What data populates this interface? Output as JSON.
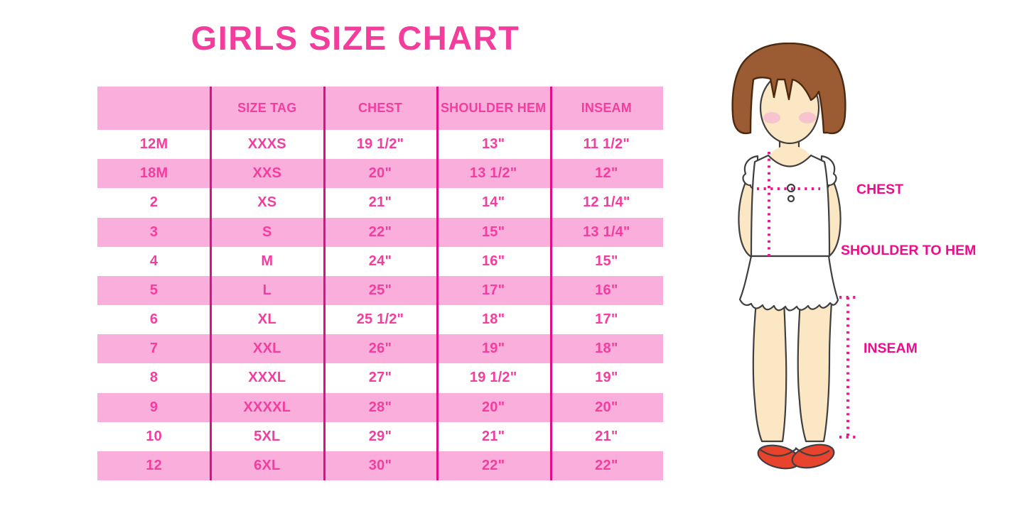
{
  "title": "GIRLS SIZE CHART",
  "chart_data": {
    "type": "table",
    "title": "GIRLS SIZE CHART",
    "columns": [
      "",
      "SIZE TAG",
      "CHEST",
      "SHOULDER HEM",
      "INSEAM"
    ],
    "rows": [
      [
        "12M",
        "XXXS",
        "19 1/2\"",
        "13\"",
        "11 1/2\""
      ],
      [
        "18M",
        "XXS",
        "20\"",
        "13 1/2\"",
        "12\""
      ],
      [
        "2",
        "XS",
        "21\"",
        "14\"",
        "12 1/4\""
      ],
      [
        "3",
        "S",
        "22\"",
        "15\"",
        "13 1/4\""
      ],
      [
        "4",
        "M",
        "24\"",
        "16\"",
        "15\""
      ],
      [
        "5",
        "L",
        "25\"",
        "17\"",
        "16\""
      ],
      [
        "6",
        "XL",
        "25 1/2\"",
        "18\"",
        "17\""
      ],
      [
        "7",
        "XXL",
        "26\"",
        "19\"",
        "18\""
      ],
      [
        "8",
        "XXXL",
        "27\"",
        "19 1/2\"",
        "19\""
      ],
      [
        "9",
        "XXXXL",
        "28\"",
        "20\"",
        "20\""
      ],
      [
        "10",
        "5XL",
        "29\"",
        "21\"",
        "21\""
      ],
      [
        "12",
        "6XL",
        "30\"",
        "22\"",
        "22\""
      ]
    ],
    "layout_hints": {
      "header_background": "pink",
      "row_striping": "white/pink alternating starting white",
      "column_dividers": "magenta vertical lines"
    }
  },
  "figure": {
    "description_labels": {
      "chest": "CHEST",
      "shoulder_to_hem": "SHOULDER TO HEM",
      "inseam": "INSEAM"
    }
  },
  "colors": {
    "title_pink": "#F33D9D",
    "table_row_pink": "#F9AEDC",
    "table_text_pink": "#F23E9E",
    "divider_magenta": "#E00D86",
    "label_magenta": "#EC0C8C",
    "dotted_line_magenta": "#EB1991",
    "hair_brown": "#9B5C33",
    "skin_tone": "#FBE7C3",
    "blush_pink": "#F6C3CE",
    "shoe_red": "#E8432C"
  }
}
